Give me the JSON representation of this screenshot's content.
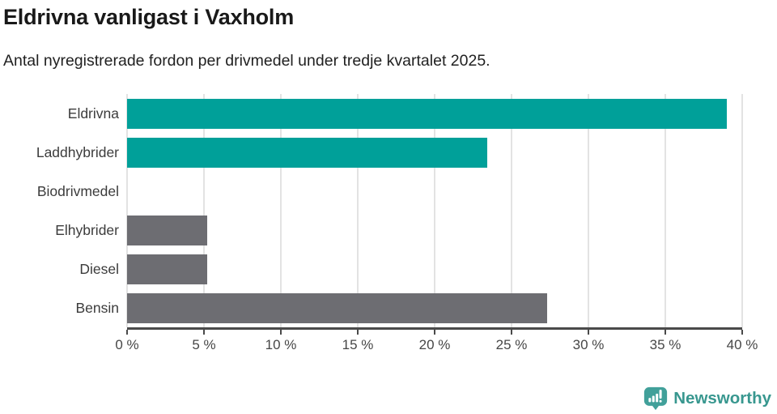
{
  "header": {
    "title": "Eldrivna vanligast i Vaxholm",
    "subtitle": "Antal nyregistrerade fordon per drivmedel under tredje kvartalet 2025."
  },
  "chart_data": {
    "type": "bar",
    "orientation": "horizontal",
    "title": "Eldrivna vanligast i Vaxholm",
    "subtitle": "Antal nyregistrerade fordon per drivmedel under tredje kvartalet 2025.",
    "categories": [
      "Eldrivna",
      "Laddhybrider",
      "Biodrivmedel",
      "Elhybrider",
      "Diesel",
      "Bensin"
    ],
    "values": [
      39.0,
      23.4,
      0,
      5.2,
      5.2,
      27.3
    ],
    "unit": "%",
    "colors": [
      "#00A099",
      "#00A099",
      "#6D6D72",
      "#6D6D72",
      "#6D6D72",
      "#6D6D72"
    ],
    "highlight_color": "#00A099",
    "default_color": "#6D6D72",
    "xlabel": "",
    "ylabel": "",
    "xlim": [
      0,
      40
    ],
    "xticks": [
      {
        "value": 0,
        "label": "0 %"
      },
      {
        "value": 5,
        "label": "5 %"
      },
      {
        "value": 10,
        "label": "10 %"
      },
      {
        "value": 15,
        "label": "15 %"
      },
      {
        "value": 20,
        "label": "20 %"
      },
      {
        "value": 25,
        "label": "25 %"
      },
      {
        "value": 30,
        "label": "30 %"
      },
      {
        "value": 35,
        "label": "35 %"
      },
      {
        "value": 40,
        "label": "40 %"
      }
    ],
    "grid": true,
    "legend": false
  },
  "footer": {
    "brand": "Newsworthy",
    "brand_color": "#38978F"
  }
}
